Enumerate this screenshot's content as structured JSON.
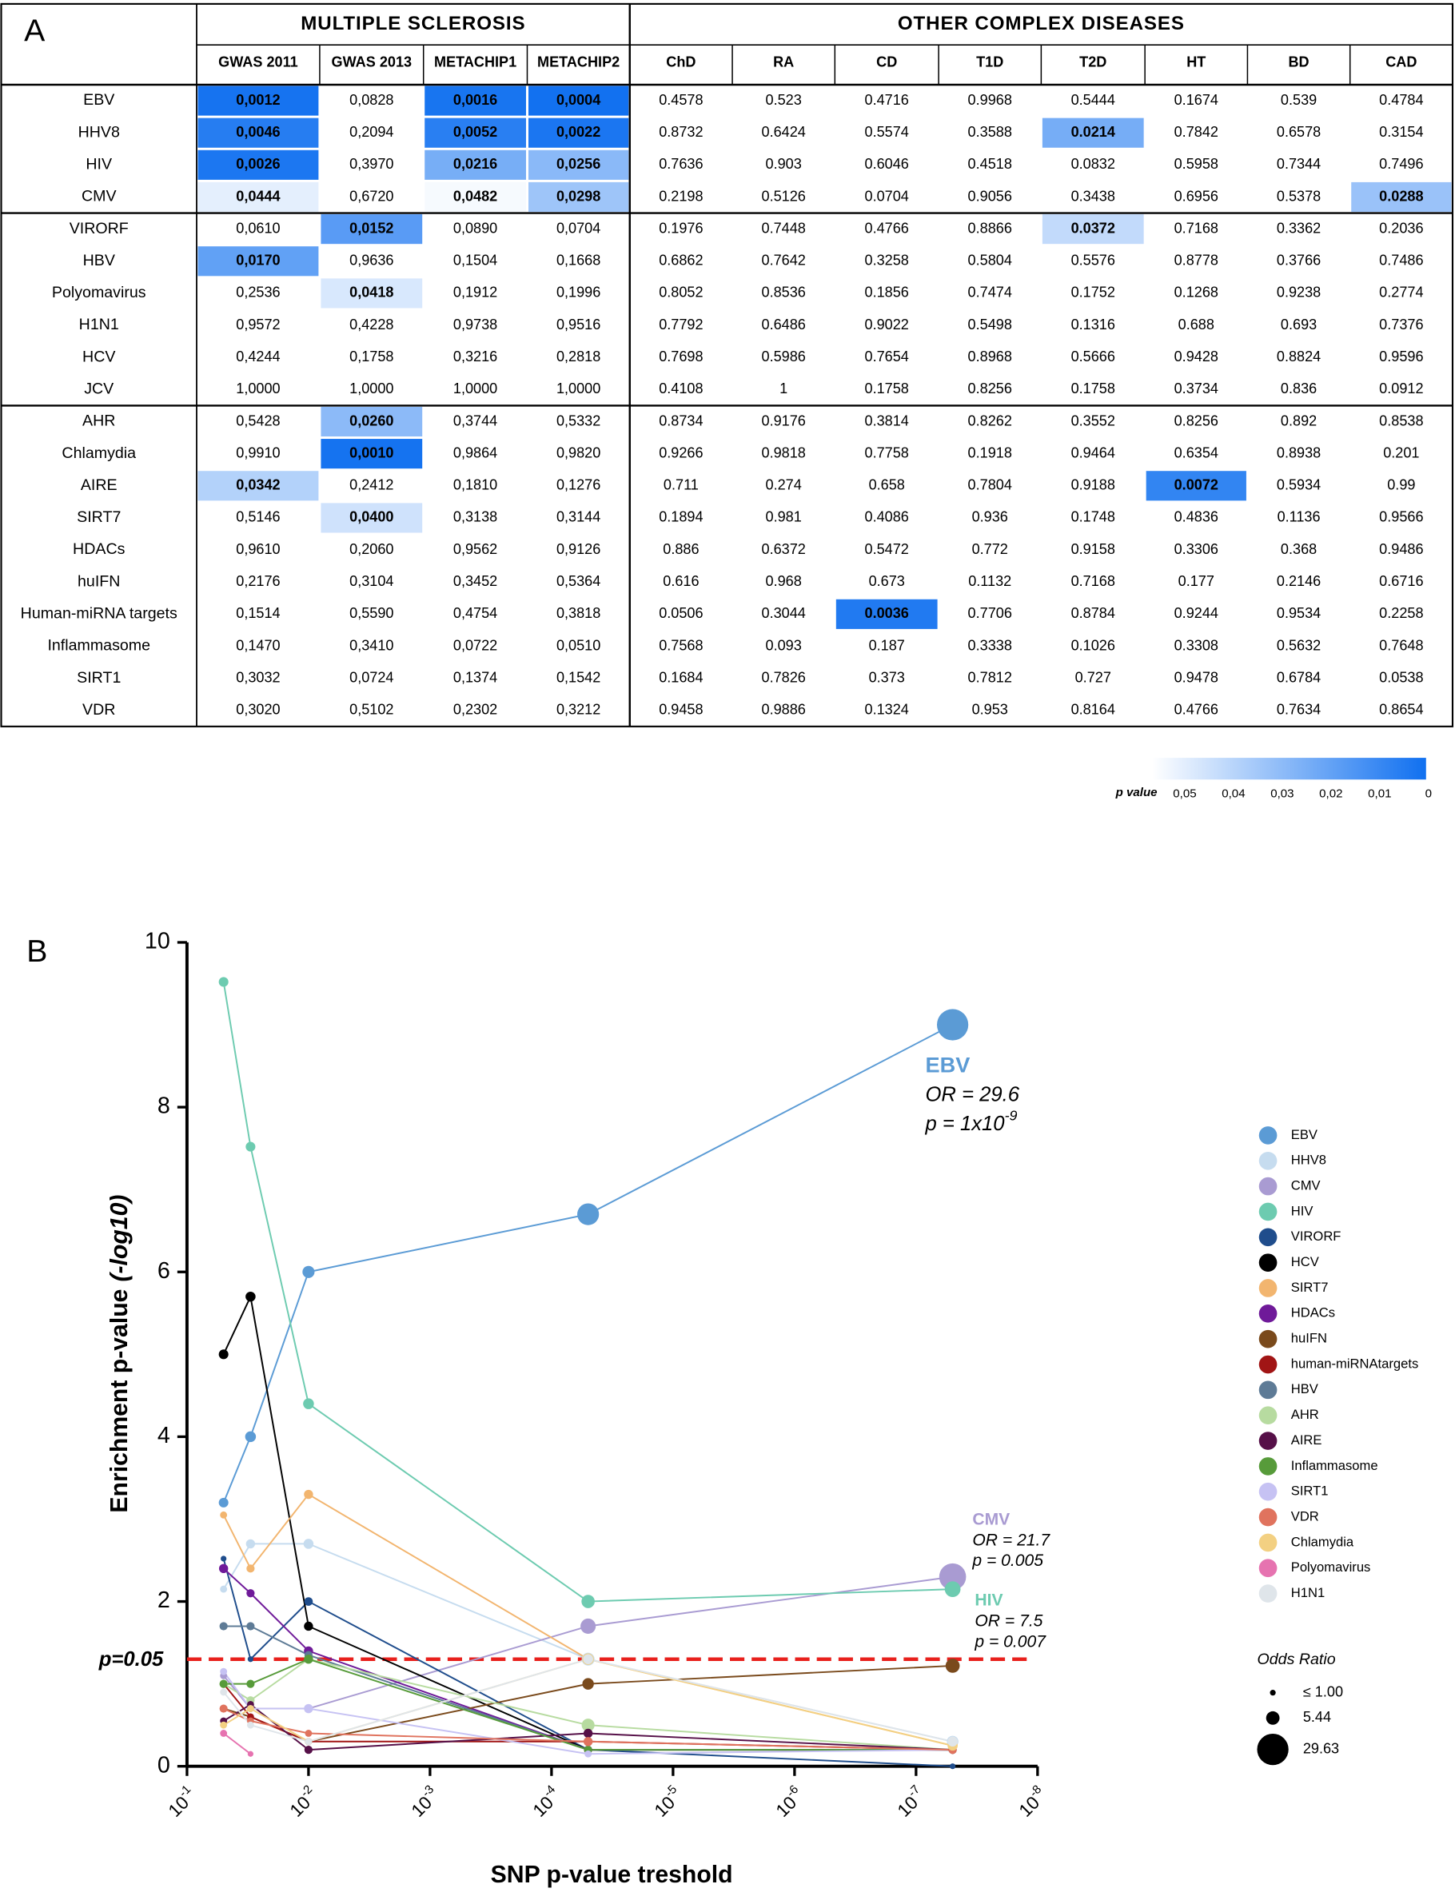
{
  "panel_labels": [
    "A",
    "B"
  ],
  "panel_a": {
    "groups": [
      {
        "label": "MULTIPLE SCLEROSIS",
        "columns": [
          "GWAS 2011",
          "GWAS 2013",
          "METACHIP1",
          "METACHIP2"
        ]
      },
      {
        "label": "OTHER COMPLEX DISEASES",
        "columns": [
          "ChD",
          "RA",
          "CD",
          "T1D",
          "T2D",
          "HT",
          "BD",
          "CAD"
        ]
      }
    ],
    "row_groups": [
      [
        {
          "label": "EBV",
          "values": [
            "0,0012",
            "0,0828",
            "0,0016",
            "0,0004",
            "0.4578",
            "0.523",
            "0.4716",
            "0.9968",
            "0.5444",
            "0.1674",
            "0.539",
            "0.4784"
          ]
        },
        {
          "label": "HHV8",
          "values": [
            "0,0046",
            "0,2094",
            "0,0052",
            "0,0022",
            "0.8732",
            "0.6424",
            "0.5574",
            "0.3588",
            "0.0214",
            "0.7842",
            "0.6578",
            "0.3154"
          ]
        },
        {
          "label": "HIV",
          "values": [
            "0,0026",
            "0,3970",
            "0,0216",
            "0,0256",
            "0.7636",
            "0.903",
            "0.6046",
            "0.4518",
            "0.0832",
            "0.5958",
            "0.7344",
            "0.7496"
          ]
        },
        {
          "label": "CMV",
          "values": [
            "0,0444",
            "0,6720",
            "0,0482",
            "0,0298",
            "0.2198",
            "0.5126",
            "0.0704",
            "0.9056",
            "0.3438",
            "0.6956",
            "0.5378",
            "0.0288"
          ]
        }
      ],
      [
        {
          "label": "VIRORF",
          "values": [
            "0,0610",
            "0,0152",
            "0,0890",
            "0,0704",
            "0.1976",
            "0.7448",
            "0.4766",
            "0.8866",
            "0.0372",
            "0.7168",
            "0.3362",
            "0.2036"
          ]
        },
        {
          "label": "HBV",
          "values": [
            "0,0170",
            "0,9636",
            "0,1504",
            "0,1668",
            "0.6862",
            "0.7642",
            "0.3258",
            "0.5804",
            "0.5576",
            "0.8778",
            "0.3766",
            "0.7486"
          ]
        },
        {
          "label": "Polyomavirus",
          "values": [
            "0,2536",
            "0,0418",
            "0,1912",
            "0,1996",
            "0.8052",
            "0.8536",
            "0.1856",
            "0.7474",
            "0.1752",
            "0.1268",
            "0.9238",
            "0.2774"
          ]
        },
        {
          "label": "H1N1",
          "values": [
            "0,9572",
            "0,4228",
            "0,9738",
            "0,9516",
            "0.7792",
            "0.6486",
            "0.9022",
            "0.5498",
            "0.1316",
            "0.688",
            "0.693",
            "0.7376"
          ]
        },
        {
          "label": "HCV",
          "values": [
            "0,4244",
            "0,1758",
            "0,3216",
            "0,2818",
            "0.7698",
            "0.5986",
            "0.7654",
            "0.8968",
            "0.5666",
            "0.9428",
            "0.8824",
            "0.9596"
          ]
        },
        {
          "label": "JCV",
          "values": [
            "1,0000",
            "1,0000",
            "1,0000",
            "1,0000",
            "0.4108",
            "1",
            "0.1758",
            "0.8256",
            "0.1758",
            "0.3734",
            "0.836",
            "0.0912"
          ]
        }
      ],
      [
        {
          "label": "AHR",
          "values": [
            "0,5428",
            "0,0260",
            "0,3744",
            "0,5332",
            "0.8734",
            "0.9176",
            "0.3814",
            "0.8262",
            "0.3552",
            "0.8256",
            "0.892",
            "0.8538"
          ]
        },
        {
          "label": "Chlamydia",
          "values": [
            "0,9910",
            "0,0010",
            "0,9864",
            "0,9820",
            "0.9266",
            "0.9818",
            "0.7758",
            "0.1918",
            "0.9464",
            "0.6354",
            "0.8938",
            "0.201"
          ]
        },
        {
          "label": "AIRE",
          "values": [
            "0,0342",
            "0,2412",
            "0,1810",
            "0,1276",
            "0.711",
            "0.274",
            "0.658",
            "0.7804",
            "0.9188",
            "0.0072",
            "0.5934",
            "0.99"
          ]
        },
        {
          "label": "SIRT7",
          "values": [
            "0,5146",
            "0,0400",
            "0,3138",
            "0,3144",
            "0.1894",
            "0.981",
            "0.4086",
            "0.936",
            "0.1748",
            "0.4836",
            "0.1136",
            "0.9566"
          ]
        },
        {
          "label": "HDACs",
          "values": [
            "0,9610",
            "0,2060",
            "0,9562",
            "0,9126",
            "0.886",
            "0.6372",
            "0.5472",
            "0.772",
            "0.9158",
            "0.3306",
            "0.368",
            "0.9486"
          ]
        },
        {
          "label": "huIFN",
          "values": [
            "0,2176",
            "0,3104",
            "0,3452",
            "0,5364",
            "0.616",
            "0.968",
            "0.673",
            "0.1132",
            "0.7168",
            "0.177",
            "0.2146",
            "0.6716"
          ]
        },
        {
          "label": "Human-miRNA targets",
          "values": [
            "0,1514",
            "0,5590",
            "0,4754",
            "0,3818",
            "0.0506",
            "0.3044",
            "0.0036",
            "0.7706",
            "0.8784",
            "0.9244",
            "0.9534",
            "0.2258"
          ]
        },
        {
          "label": "Inflammasome",
          "values": [
            "0,1470",
            "0,3410",
            "0,0722",
            "0,0510",
            "0.7568",
            "0.093",
            "0.187",
            "0.3338",
            "0.1026",
            "0.3308",
            "0.5632",
            "0.7648"
          ]
        },
        {
          "label": "SIRT1",
          "values": [
            "0,3032",
            "0,0724",
            "0,1374",
            "0,1542",
            "0.1684",
            "0.7826",
            "0.373",
            "0.7812",
            "0.727",
            "0.9478",
            "0.6784",
            "0.0538"
          ]
        },
        {
          "label": "VDR",
          "values": [
            "0,3020",
            "0,5102",
            "0,2302",
            "0,3212",
            "0.9458",
            "0.9886",
            "0.1324",
            "0.953",
            "0.8164",
            "0.4766",
            "0.7634",
            "0.8654"
          ]
        }
      ]
    ],
    "colorbar": {
      "label": "p value",
      "lim": [
        0.05,
        0
      ],
      "colors": [
        "#ffffff",
        "#1070f0"
      ],
      "ticks": [
        {
          "value": 0.05,
          "label": "0,05"
        },
        {
          "value": 0.04,
          "label": "0,04"
        },
        {
          "value": 0.03,
          "label": "0,03"
        },
        {
          "value": 0.02,
          "label": "0,02"
        },
        {
          "value": 0.01,
          "label": "0,01"
        },
        0
      ]
    }
  },
  "chart_data": {
    "type": "bubble-line",
    "x_label": "SNP p-value treshold",
    "y_label": "Enrichment p-value",
    "y_label_unit": "(-log10)",
    "x": [
      0.05,
      0.03,
      0.01,
      5e-05,
      5e-08
    ],
    "xscale": "log",
    "xlim": [
      0.1,
      1e-08
    ],
    "xticks": [
      {
        "value": 0.1,
        "label": "10",
        "exponent": "-1"
      },
      {
        "value": 0.01,
        "label": "10",
        "exponent": "-2"
      },
      {
        "value": 0.001,
        "label": "10",
        "exponent": "-3"
      },
      {
        "value": 0.0001,
        "label": "10",
        "exponent": "-4"
      },
      {
        "value": 1e-05,
        "label": "10",
        "exponent": "-5"
      },
      {
        "value": 1e-06,
        "label": "10",
        "exponent": "-6"
      },
      {
        "value": 1e-07,
        "label": "10",
        "exponent": "-7"
      },
      {
        "value": 1e-08,
        "label": "10",
        "exponent": "-8"
      }
    ],
    "ylim": [
      0,
      10
    ],
    "yticks": [
      0,
      2,
      4,
      6,
      8,
      10
    ],
    "grid": false,
    "threshold": {
      "value": 1.3,
      "label": "p=0.05",
      "color": "#e8201c"
    },
    "series": [
      {
        "name": "EBV",
        "color": "#5b9bd5",
        "values": [
          3.2,
          4.0,
          6.0,
          6.7,
          9.0
        ],
        "sizes": [
          2.8,
          3.5,
          4.4,
          14.2,
          29.6
        ]
      },
      {
        "name": "HHV8",
        "color": "#c6dcef",
        "values": [
          2.15,
          2.7,
          2.7,
          1.3,
          0.3
        ],
        "sizes": [
          1.5,
          2.5,
          3,
          5,
          4
        ]
      },
      {
        "name": "CMV",
        "color": "#a99bd2",
        "values": [
          1.1,
          0.7,
          0.7,
          1.7,
          2.3
        ],
        "sizes": [
          1.5,
          1.5,
          2,
          7,
          21.7
        ]
      },
      {
        "name": "HIV",
        "color": "#6dcbb0",
        "values": [
          9.52,
          7.52,
          4.4,
          2.0,
          2.15
        ],
        "sizes": [
          2.8,
          2.8,
          3.5,
          5.3,
          7.5
        ]
      },
      {
        "name": "VIRORF",
        "color": "#1f4d8c",
        "values": [
          2.52,
          1.3,
          2.0,
          0.2,
          0.0
        ],
        "sizes": [
          1,
          1,
          2.2,
          2,
          1
        ]
      },
      {
        "name": "HCV",
        "color": "#000000",
        "values": [
          5.0,
          5.7,
          1.7,
          0.2,
          0.2
        ],
        "sizes": [
          2.8,
          3,
          2.5,
          2,
          2
        ]
      },
      {
        "name": "SIRT7",
        "color": "#f2b56f",
        "values": [
          3.05,
          2.4,
          3.3,
          1.3,
          0.25
        ],
        "sizes": [
          1.5,
          2,
          2.5,
          3,
          3
        ]
      },
      {
        "name": "HDACs",
        "color": "#6f1a99",
        "values": [
          2.4,
          2.1,
          1.4,
          0.2,
          0.2
        ],
        "sizes": [
          2.5,
          2,
          2.5,
          2,
          1
        ]
      },
      {
        "name": "huIFN",
        "color": "#7a4a1c",
        "values": [
          0.7,
          0.6,
          0.3,
          1.0,
          1.22
        ],
        "sizes": [
          1,
          1,
          1.5,
          4,
          6
        ]
      },
      {
        "name": "human-miRNAtargets",
        "color": "#a11515",
        "values": [
          1.0,
          0.6,
          0.3,
          0.3,
          0.2
        ],
        "sizes": [
          1.5,
          1.5,
          1.5,
          2,
          2
        ]
      },
      {
        "name": "HBV",
        "color": "#5e7b96",
        "values": [
          1.7,
          1.7,
          1.35,
          0.2,
          0.2
        ],
        "sizes": [
          2,
          2,
          2,
          1.5,
          1
        ]
      },
      {
        "name": "AHR",
        "color": "#b7dba0",
        "values": [
          1.0,
          0.8,
          1.3,
          0.5,
          0.2
        ],
        "sizes": [
          2,
          2,
          2,
          5,
          1.5
        ]
      },
      {
        "name": "AIRE",
        "color": "#561048",
        "values": [
          0.55,
          0.75,
          0.2,
          0.4,
          0.2
        ],
        "sizes": [
          1.5,
          1.5,
          2,
          2.5,
          1.5
        ]
      },
      {
        "name": "Inflammasome",
        "color": "#579b3a",
        "values": [
          1.0,
          1.0,
          1.3,
          0.2,
          0.2
        ],
        "sizes": [
          2,
          2,
          2.5,
          2,
          1
        ]
      },
      {
        "name": "SIRT1",
        "color": "#c6c2f3",
        "values": [
          1.15,
          0.7,
          0.7,
          0.15,
          0.2
        ],
        "sizes": [
          1.5,
          1.5,
          2.5,
          1.5,
          1
        ]
      },
      {
        "name": "VDR",
        "color": "#e0735e",
        "values": [
          0.7,
          0.55,
          0.4,
          0.3,
          0.2
        ],
        "sizes": [
          2,
          1.5,
          1.5,
          2.5,
          2
        ]
      },
      {
        "name": "Chlamydia",
        "color": "#f3d082",
        "values": [
          0.5,
          0.7,
          0.3,
          1.3,
          0.25
        ],
        "sizes": [
          1.5,
          1.5,
          1.5,
          4,
          3
        ]
      },
      {
        "name": "Polyomavirus",
        "color": "#e673b0",
        "values": [
          0.4,
          0.15,
          null,
          null,
          null
        ],
        "sizes": [
          1.5,
          1,
          null,
          null,
          null
        ]
      },
      {
        "name": "H1N1",
        "color": "#dfe5ea",
        "values": [
          0.9,
          0.5,
          0.3,
          1.3,
          0.3
        ],
        "sizes": [
          1.5,
          1.5,
          1.5,
          3,
          3
        ]
      }
    ],
    "annotations": [
      {
        "title": "EBV",
        "color": "#5b9bd5",
        "lines": [
          {
            "text": "OR = 29.6"
          },
          {
            "text": "p = 1x10",
            "sup": "-9"
          }
        ]
      },
      {
        "title": "CMV",
        "color": "#a99bd2",
        "lines": [
          {
            "text": "OR = 21.7"
          },
          {
            "text": "p = 0.005"
          }
        ]
      },
      {
        "title": "HIV",
        "color": "#6dcbb0",
        "lines": [
          {
            "text": "OR = 7.5"
          },
          {
            "text": "p = 0.007"
          }
        ]
      }
    ],
    "size_legend": {
      "title": "Odds Ratio",
      "entries": [
        {
          "value": 1.0,
          "label": "≤ 1.00"
        },
        {
          "value": 5.44,
          "label": "5.44"
        },
        {
          "value": 29.63,
          "label": "29.63"
        }
      ]
    }
  }
}
